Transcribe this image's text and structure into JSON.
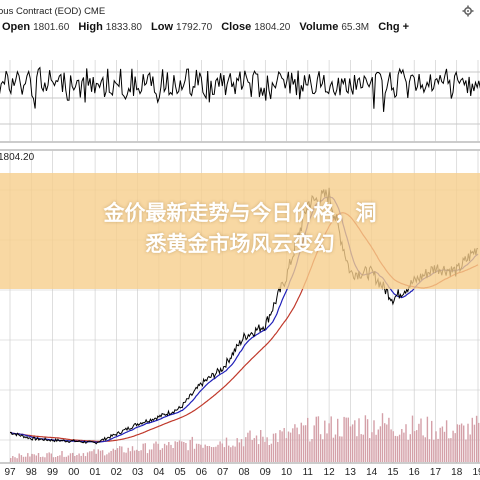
{
  "header": {
    "title_prefix": "ous Contract (EOD)",
    "exchange": "CME",
    "open_label": "Open",
    "open_value": "1801.60",
    "high_label": "High",
    "high_value": "1833.80",
    "low_label": "Low",
    "low_value": "1792.70",
    "close_label": "Close",
    "close_value": "1804.20",
    "volume_label": "Volume",
    "volume_value": "65.3M",
    "chg_label": "Chg +",
    "settings_icon": "gear-icon"
  },
  "price_label": "1804.20",
  "banner": {
    "line1": "金价最新走势与今日价格，洞",
    "line2": "悉黄金市场风云变幻",
    "color": "#f6ce8c"
  },
  "colors": {
    "price": "#000000",
    "ma_short": "#1f1fb8",
    "ma_long": "#c0392b",
    "volume": "#d4a0a8",
    "grid": "#c8c8c8"
  },
  "chart_data": {
    "type": "line",
    "x_ticks": [
      "97",
      "98",
      "99",
      "00",
      "01",
      "02",
      "03",
      "04",
      "05",
      "06",
      "07",
      "08",
      "09",
      "10",
      "11",
      "12",
      "13",
      "14",
      "15",
      "16",
      "17",
      "18",
      "19"
    ],
    "price_series": {
      "x": [
        1997,
        1998,
        1999,
        2000,
        2001,
        2002,
        2003,
        2004,
        2005,
        2006,
        2007,
        2008,
        2009,
        2010,
        2011,
        2012,
        2013,
        2014,
        2015,
        2016,
        2017,
        2018,
        2019
      ],
      "values": [
        330,
        295,
        285,
        280,
        270,
        320,
        380,
        420,
        470,
        610,
        700,
        880,
        950,
        1230,
        1650,
        1700,
        1250,
        1250,
        1100,
        1200,
        1280,
        1260,
        1400
      ]
    },
    "volume": {
      "relative_values": [
        0.15,
        0.18,
        0.2,
        0.22,
        0.25,
        0.3,
        0.35,
        0.4,
        0.45,
        0.5,
        0.55,
        0.6,
        0.65,
        0.7,
        0.85,
        0.9,
        0.95,
        1.0,
        0.95,
        0.9,
        0.85,
        0.8,
        0.9
      ]
    },
    "indicator_panel": {
      "type": "oscillator",
      "grid": true
    },
    "last_price": 1804.2,
    "grid": true
  }
}
